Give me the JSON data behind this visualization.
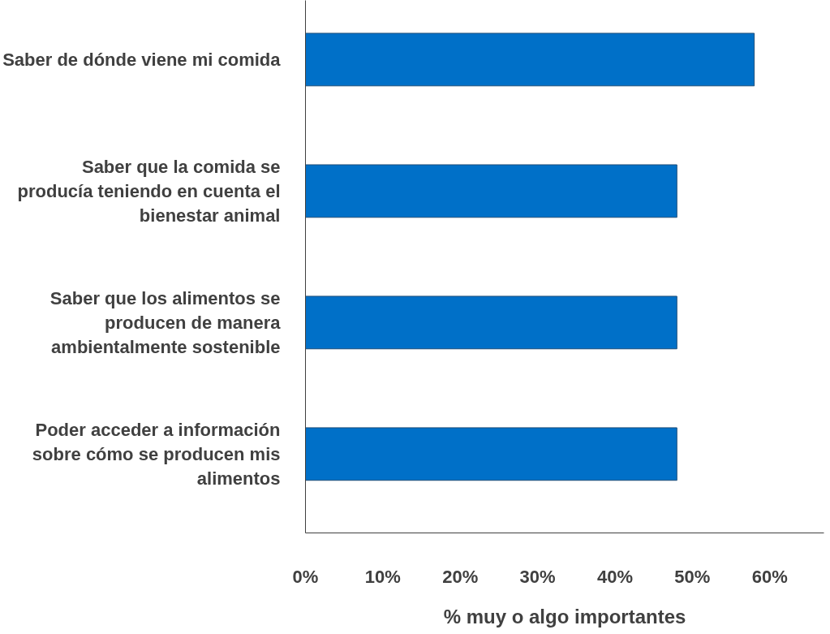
{
  "chart_data": {
    "type": "bar",
    "orientation": "horizontal",
    "categories": [
      "Saber de dónde viene mi comida",
      "Saber que la comida se producía teniendo en cuenta el bienestar animal",
      "Saber que los alimentos se producen de manera ambientalmente sostenible",
      "Poder acceder a información sobre cómo se producen mis alimentos"
    ],
    "values": [
      58,
      48,
      48,
      48
    ],
    "color": "#0070c8",
    "xlabel": "% muy o algo importantes",
    "xlim": [
      0,
      67
    ],
    "xticks": [
      {
        "value": 0,
        "label": "0%"
      },
      {
        "value": 10,
        "label": "10%"
      },
      {
        "value": 20,
        "label": "20%"
      },
      {
        "value": 30,
        "label": "30%"
      },
      {
        "value": 40,
        "label": "40%"
      },
      {
        "value": 50,
        "label": "50%"
      },
      {
        "value": 60,
        "label": "60%"
      }
    ],
    "grid": false
  }
}
